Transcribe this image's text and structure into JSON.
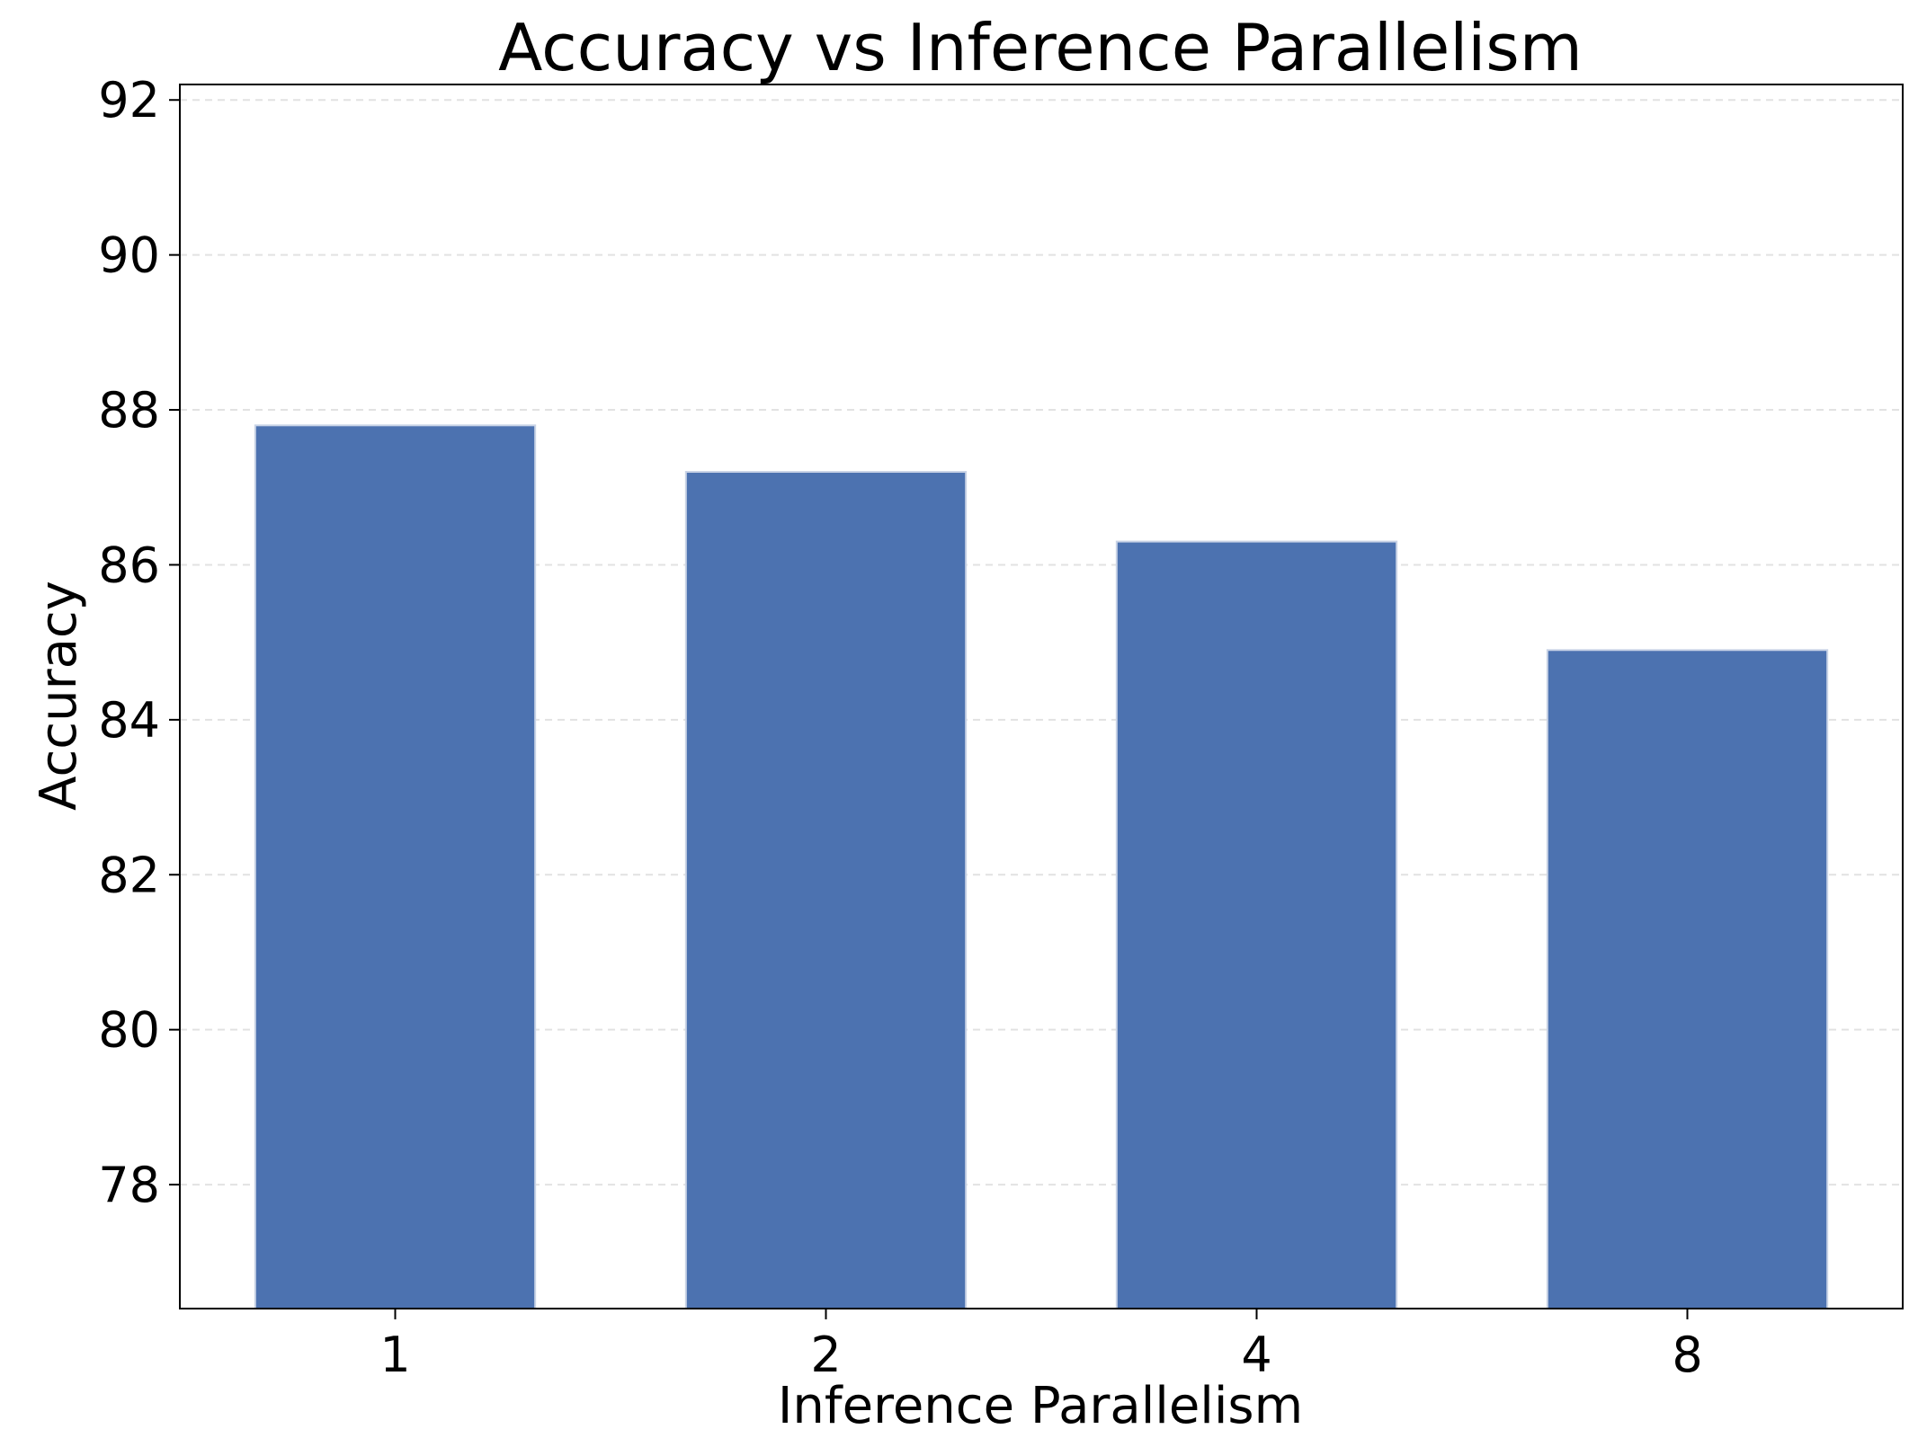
{
  "chart_data": {
    "type": "bar",
    "title": "Accuracy vs Inference Parallelism",
    "xlabel": "Inference Parallelism",
    "ylabel": "Accuracy",
    "categories": [
      "1",
      "2",
      "4",
      "8"
    ],
    "values": [
      87.8,
      87.2,
      86.3,
      84.9
    ],
    "ylim": [
      76.4,
      92.2
    ],
    "yticks": [
      78,
      80,
      82,
      84,
      86,
      88,
      90,
      92
    ],
    "grid": true,
    "legend": "none",
    "bar_color": "#4c72b0"
  }
}
